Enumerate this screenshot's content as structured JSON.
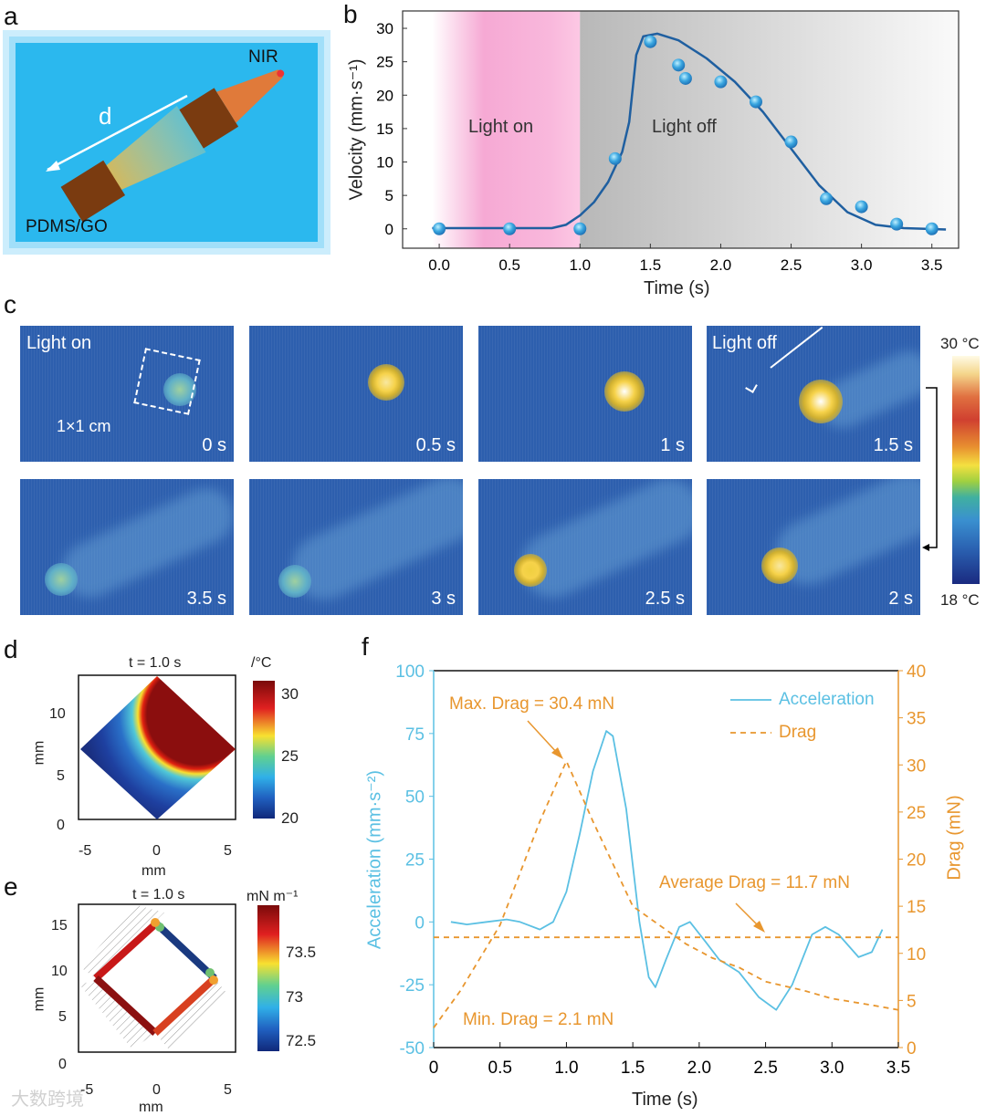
{
  "panels": {
    "a": {
      "label": "a",
      "nir": "NIR",
      "d": "d",
      "material": "PDMS/GO"
    },
    "b": {
      "label": "b"
    },
    "c": {
      "label": "c",
      "light_on": "Light on",
      "light_off": "Light off",
      "scale": "1×1 cm",
      "frames": [
        "0 s",
        "0.5 s",
        "1 s",
        "1.5 s",
        "3.5 s",
        "3 s",
        "2.5 s",
        "2 s"
      ],
      "colorbar_max": "30 °C",
      "colorbar_min": "18 °C"
    },
    "d": {
      "label": "d",
      "title": "t = 1.0 s",
      "unit": "/°C",
      "cbar_ticks": [
        "30",
        "25",
        "20"
      ],
      "xticks": [
        "-5",
        "0",
        "5"
      ],
      "yticks": [
        "10",
        "5",
        "0"
      ],
      "xlabel": "mm",
      "ylabel": "mm"
    },
    "e": {
      "label": "e",
      "title": "t = 1.0 s",
      "unit": "mN m⁻¹",
      "cbar_ticks": [
        "73.5",
        "73",
        "72.5"
      ],
      "xticks": [
        "-5",
        "0",
        "5"
      ],
      "yticks": [
        "15",
        "10",
        "5",
        "0"
      ],
      "xlabel": "mm",
      "ylabel": "mm"
    },
    "f": {
      "label": "f"
    }
  },
  "watermark": "大数跨境",
  "colors": {
    "velocity": "#1f5fa0",
    "light_on": "#f6a9d4",
    "acceleration": "#5bc0e3",
    "drag": "#e8962e"
  },
  "chart_data": [
    {
      "id": "b",
      "type": "scatter",
      "title": "",
      "xlabel": "Time (s)",
      "ylabel": "Velocity (mm·s⁻¹)",
      "xlim": [
        -0.26,
        3.69
      ],
      "ylim": [
        -2.9,
        32.6
      ],
      "xticks": [
        "0.0",
        "0.5",
        "1.0",
        "1.5",
        "2.0",
        "2.5",
        "3.0",
        "3.5"
      ],
      "yticks": [
        "0",
        "5",
        "10",
        "15",
        "20",
        "25",
        "30"
      ],
      "regions": [
        {
          "label": "Light on",
          "from": 0,
          "to": 1.0
        },
        {
          "label": "Light off",
          "from": 1.0,
          "to": 3.69
        }
      ],
      "points": [
        [
          0,
          0
        ],
        [
          0.5,
          0
        ],
        [
          1.0,
          0
        ],
        [
          1.25,
          10.5
        ],
        [
          1.5,
          28
        ],
        [
          1.7,
          24.5
        ],
        [
          1.75,
          22.5
        ],
        [
          2.0,
          22
        ],
        [
          2.25,
          19
        ],
        [
          2.5,
          13
        ],
        [
          2.75,
          4.5
        ],
        [
          3.0,
          3.3
        ],
        [
          3.25,
          0.7
        ],
        [
          3.5,
          0
        ]
      ],
      "fit": [
        [
          -0.05,
          0.1
        ],
        [
          0.8,
          0.1
        ],
        [
          0.9,
          0.6
        ],
        [
          1.0,
          2
        ],
        [
          1.1,
          4
        ],
        [
          1.2,
          7
        ],
        [
          1.3,
          11.5
        ],
        [
          1.35,
          16
        ],
        [
          1.4,
          26
        ],
        [
          1.45,
          28.8
        ],
        [
          1.55,
          29.2
        ],
        [
          1.7,
          28.2
        ],
        [
          1.9,
          25.5
        ],
        [
          2.1,
          22
        ],
        [
          2.3,
          17.5
        ],
        [
          2.5,
          12
        ],
        [
          2.7,
          6.5
        ],
        [
          2.9,
          2.5
        ],
        [
          3.1,
          0.6
        ],
        [
          3.3,
          0.1
        ],
        [
          3.6,
          -0.1
        ]
      ]
    },
    {
      "id": "f",
      "type": "line",
      "xlabel": "Time (s)",
      "ylabel_left": "Acceleration (mm·s⁻²)",
      "ylabel_right": "Drag (mN)",
      "xlim": [
        0,
        3.5
      ],
      "ylim_left": [
        -50,
        100
      ],
      "ylim_right": [
        0,
        40
      ],
      "xticks": [
        "0",
        "0.5",
        "1.0",
        "1.5",
        "2.0",
        "2.5",
        "3.0",
        "3.5"
      ],
      "yticks_left": [
        "-50",
        "-25",
        "0",
        "25",
        "50",
        "75",
        "100"
      ],
      "yticks_right": [
        "0",
        "5",
        "10",
        "15",
        "20",
        "25",
        "30",
        "35",
        "40"
      ],
      "legend": {
        "position": "top-right",
        "entries": [
          "Acceleration",
          "Drag"
        ]
      },
      "annotations": [
        "Max. Drag = 30.4 mN",
        "Average Drag = 11.7 mN",
        "Min. Drag = 2.1 mN"
      ],
      "series": [
        {
          "name": "Acceleration",
          "axis": "left",
          "style": "solid",
          "points": [
            [
              0.13,
              0
            ],
            [
              0.25,
              -1
            ],
            [
              0.4,
              0
            ],
            [
              0.55,
              1
            ],
            [
              0.65,
              0
            ],
            [
              0.8,
              -3
            ],
            [
              0.9,
              0
            ],
            [
              1.0,
              12
            ],
            [
              1.1,
              35
            ],
            [
              1.2,
              60
            ],
            [
              1.3,
              76
            ],
            [
              1.35,
              74
            ],
            [
              1.45,
              45
            ],
            [
              1.55,
              0
            ],
            [
              1.62,
              -22
            ],
            [
              1.67,
              -26
            ],
            [
              1.75,
              -15
            ],
            [
              1.85,
              -2
            ],
            [
              1.93,
              0
            ],
            [
              2.05,
              -8
            ],
            [
              2.15,
              -15
            ],
            [
              2.3,
              -20
            ],
            [
              2.45,
              -30
            ],
            [
              2.58,
              -35
            ],
            [
              2.7,
              -25
            ],
            [
              2.85,
              -5
            ],
            [
              2.95,
              -2
            ],
            [
              3.05,
              -5
            ],
            [
              3.2,
              -14
            ],
            [
              3.3,
              -12
            ],
            [
              3.38,
              -3
            ]
          ]
        },
        {
          "name": "Drag",
          "axis": "right",
          "style": "dashed",
          "points": [
            [
              0,
              2.1
            ],
            [
              0.2,
              6
            ],
            [
              0.5,
              13
            ],
            [
              0.8,
              24
            ],
            [
              1.0,
              30.4
            ],
            [
              1.2,
              24
            ],
            [
              1.4,
              18
            ],
            [
              1.5,
              15
            ],
            [
              1.7,
              13
            ],
            [
              1.9,
              11
            ],
            [
              2.1,
              9.5
            ],
            [
              2.3,
              8.5
            ],
            [
              2.5,
              7
            ],
            [
              2.8,
              6
            ],
            [
              3.0,
              5.2
            ],
            [
              3.3,
              4.5
            ],
            [
              3.5,
              4
            ]
          ]
        },
        {
          "name": "Average Drag",
          "axis": "right",
          "style": "dashed",
          "points": [
            [
              0,
              11.7
            ],
            [
              3.5,
              11.7
            ]
          ]
        }
      ]
    }
  ]
}
